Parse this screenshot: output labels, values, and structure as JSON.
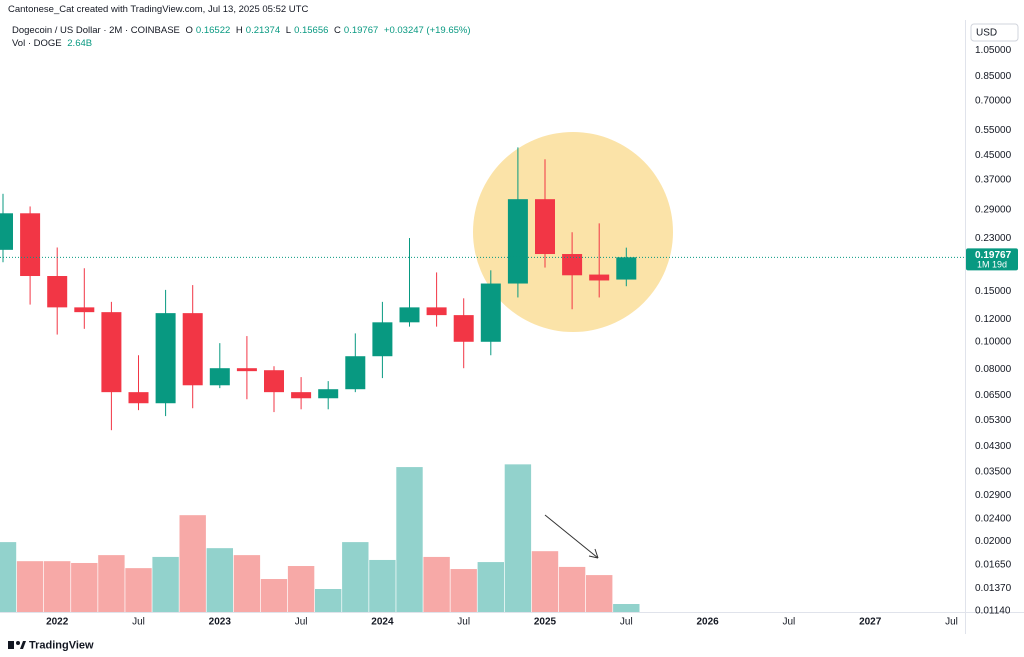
{
  "chart_data": {
    "type": "candlestick",
    "attribution": "Cantonese_Cat created with TradingView.com, Jul 13, 2025 05:52 UTC",
    "title": "Dogecoin / US Dollar · 2M · COINBASE",
    "ohlc_keys": [
      "O",
      "H",
      "L",
      "C"
    ],
    "change_label": "+0.03247 (+19.65%)",
    "currency": "USD",
    "countdown": "1M 19d",
    "footer": "TradingView",
    "log_scale": true,
    "last_price_line": true,
    "up_color": "#089981",
    "down_color": "#f23645",
    "categories": [
      null,
      null,
      "2022",
      null,
      null,
      "Jul",
      null,
      null,
      "2023",
      null,
      null,
      "Jul",
      null,
      null,
      "2024",
      null,
      null,
      "Jul",
      null,
      null,
      "2025",
      null,
      null,
      "Jul",
      null,
      null,
      "2026",
      null,
      null,
      "Jul",
      null,
      null,
      "2027",
      null,
      null,
      "Jul"
    ],
    "open": [
      0.21,
      0.282,
      0.17,
      0.132,
      0.127,
      0.0666,
      0.0609,
      0.126,
      0.0704,
      0.0808,
      0.0795,
      0.0666,
      0.0634,
      0.0682,
      0.089,
      0.117,
      0.132,
      0.124,
      0.1,
      0.16,
      0.316,
      0.203,
      0.172,
      0.16522,
      null,
      null,
      null,
      null,
      null,
      null,
      null,
      null,
      null,
      null,
      null,
      null
    ],
    "high": [
      0.33,
      0.298,
      0.214,
      0.181,
      0.138,
      0.0897,
      0.152,
      0.158,
      0.0989,
      0.1047,
      0.0821,
      0.0752,
      0.0728,
      0.107,
      0.138,
      0.231,
      0.175,
      0.142,
      0.178,
      0.48,
      0.436,
      0.242,
      0.26,
      0.21374,
      null,
      null,
      null,
      null,
      null,
      null,
      null,
      null,
      null,
      null,
      null,
      null
    ],
    "low": [
      0.19,
      0.135,
      0.106,
      0.111,
      0.049,
      0.0576,
      0.0549,
      0.0585,
      0.0688,
      0.0629,
      0.0567,
      0.058,
      0.058,
      0.0666,
      0.0746,
      0.113,
      0.113,
      0.0808,
      0.0897,
      0.143,
      0.182,
      0.13,
      0.143,
      0.15656,
      null,
      null,
      null,
      null,
      null,
      null,
      null,
      null,
      null,
      null,
      null,
      null
    ],
    "close": [
      0.282,
      0.17,
      0.132,
      0.127,
      0.0666,
      0.0609,
      0.126,
      0.0704,
      0.0808,
      0.0789,
      0.0666,
      0.0634,
      0.0682,
      0.089,
      0.117,
      0.132,
      0.124,
      0.1,
      0.16,
      0.316,
      0.203,
      0.171,
      0.164,
      0.19767,
      null,
      null,
      null,
      null,
      null,
      null,
      null,
      null,
      null,
      null,
      null,
      null
    ],
    "ylim": [
      0.0113,
      1.32
    ],
    "yticks": [
      {
        "value": 1.05,
        "label": "1.05000"
      },
      {
        "value": 0.85,
        "label": "0.85000"
      },
      {
        "value": 0.7,
        "label": "0.70000"
      },
      {
        "value": 0.55,
        "label": "0.55000"
      },
      {
        "value": 0.45,
        "label": "0.45000"
      },
      {
        "value": 0.37,
        "label": "0.37000"
      },
      {
        "value": 0.29,
        "label": "0.29000"
      },
      {
        "value": 0.23,
        "label": "0.23000"
      },
      {
        "value": 0.15,
        "label": "0.15000"
      },
      {
        "value": 0.12,
        "label": "0.12000"
      },
      {
        "value": 0.1,
        "label": "0.10000"
      },
      {
        "value": 0.08,
        "label": "0.08000"
      },
      {
        "value": 0.065,
        "label": "0.06500"
      },
      {
        "value": 0.053,
        "label": "0.05300"
      },
      {
        "value": 0.043,
        "label": "0.04300"
      },
      {
        "value": 0.035,
        "label": "0.03500"
      },
      {
        "value": 0.029,
        "label": "0.02900"
      },
      {
        "value": 0.024,
        "label": "0.02400"
      },
      {
        "value": 0.02,
        "label": "0.02000"
      },
      {
        "value": 0.0165,
        "label": "0.01650"
      },
      {
        "value": 0.0137,
        "label": "0.01370"
      },
      {
        "value": 0.0114,
        "label": "0.01140"
      }
    ],
    "volume": {
      "name": "Vol · DOGE",
      "up_color": "#92d2cc",
      "down_color": "#f7a9a7",
      "ylim": [
        0,
        195
      ],
      "values": [
        23.1,
        16.8,
        16.8,
        16.2,
        18.8,
        14.5,
        18.2,
        32.0,
        21.1,
        18.8,
        10.9,
        15.2,
        7.6,
        23.1,
        17.2,
        47.9,
        18.2,
        14.2,
        16.5,
        48.8,
        20.1,
        14.9,
        12.2,
        2.64,
        null,
        null,
        null,
        null,
        null,
        null,
        null,
        null,
        null,
        null,
        null,
        null
      ],
      "value_labels": [
        null,
        null,
        null,
        null,
        null,
        null,
        null,
        null,
        null,
        null,
        null,
        null,
        null,
        null,
        null,
        null,
        null,
        null,
        null,
        null,
        null,
        null,
        null,
        "2.64B",
        null,
        null,
        null,
        null,
        null,
        null,
        null,
        null,
        null,
        null,
        null,
        null
      ]
    }
  }
}
